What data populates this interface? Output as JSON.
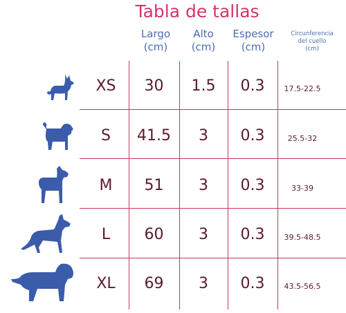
{
  "title": "Tabla de tallas",
  "headers": {
    "largo": [
      "Largo",
      "(cm)"
    ],
    "alto": [
      "Alto",
      "(cm)"
    ],
    "espesor": [
      "Espesor",
      "(cm)"
    ],
    "cuello": [
      "Circunferencia",
      "del cuello",
      "(cm)"
    ]
  },
  "rows": [
    {
      "icon": "small-dog-icon",
      "size": "XS",
      "largo": "30",
      "alto": "1.5",
      "espesor": "0.3",
      "cuello": "17.5-22.5"
    },
    {
      "icon": "pug-dog-icon",
      "size": "S",
      "largo": "41.5",
      "alto": "3",
      "espesor": "0.3",
      "cuello": "25.5-32"
    },
    {
      "icon": "boxer-dog-icon",
      "size": "M",
      "largo": "51",
      "alto": "3",
      "espesor": "0.3",
      "cuello": "33-39"
    },
    {
      "icon": "shepherd-dog-icon",
      "size": "L",
      "largo": "60",
      "alto": "3",
      "espesor": "0.3",
      "cuello": "39.5-48.5"
    },
    {
      "icon": "mastiff-dog-icon",
      "size": "XL",
      "largo": "69",
      "alto": "3",
      "espesor": "0.3",
      "cuello": "43.5-56.5"
    }
  ],
  "colors": {
    "title": "#d6336c",
    "header": "#4a6db5",
    "grid": "#c9355a",
    "value": "#5a1a2a",
    "icon": "#3b5bab"
  }
}
